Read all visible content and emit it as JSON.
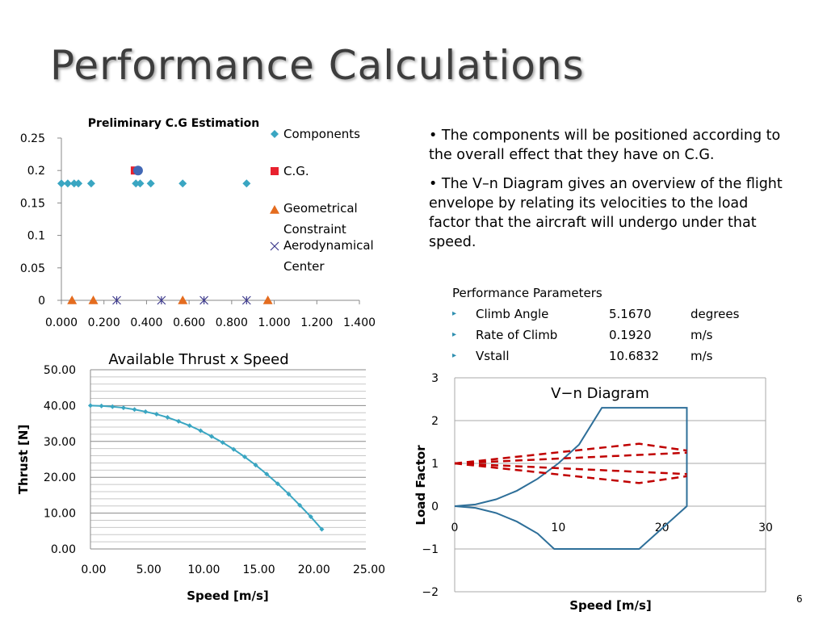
{
  "slide": {
    "title": "Performance Calculations",
    "page_number": "6"
  },
  "bullets": [
    "• The components will be positioned according to the overall effect that they have on C.G.",
    "• The V–n Diagram gives an overview of the flight envelope by relating its velocities to the load factor that the aircraft will undergo under that speed."
  ],
  "performance": {
    "heading": "Performance Parameters",
    "rows": [
      {
        "name": "Climb Angle",
        "value": "5.1670",
        "unit": "degrees"
      },
      {
        "name": "Rate of Climb",
        "value": "0.1920",
        "unit": "m/s"
      },
      {
        "name": "Vstall",
        "value": "10.6832",
        "unit": "m/s"
      }
    ]
  },
  "colors": {
    "title": "#3d3d3d",
    "components": "#3aa6c2",
    "cg": "#e8212e",
    "cg_marker": "#4268b5",
    "geometrical": "#e46c1f",
    "aero": "#3d3a8c",
    "thrust_line": "#3aa6c2",
    "envelope": "#2e6f99",
    "gust": "#c00000",
    "bullet_arrow": "#2e8fb0"
  },
  "chart_data": [
    {
      "type": "scatter",
      "title": "Preliminary C.G Estimation",
      "xlim": [
        0,
        1.4
      ],
      "ylim": [
        0,
        0.25
      ],
      "x_ticks": [
        "0.000",
        "0.200",
        "0.400",
        "0.600",
        "0.800",
        "1.000",
        "1.200",
        "1.400"
      ],
      "y_ticks": [
        "0",
        "0.05",
        "0.1",
        "0.15",
        "0.2",
        "0.25"
      ],
      "grid": false,
      "legend_position": "right",
      "series": [
        {
          "name": "Components",
          "marker": "diamond",
          "x": [
            0.0,
            0.03,
            0.06,
            0.08,
            0.14,
            0.35,
            0.37,
            0.42,
            0.57,
            0.87
          ],
          "y": [
            0.18,
            0.18,
            0.18,
            0.18,
            0.18,
            0.18,
            0.18,
            0.18,
            0.18,
            0.18
          ]
        },
        {
          "name": "C.G.",
          "marker": "square",
          "x": [
            0.345
          ],
          "y": [
            0.2
          ]
        },
        {
          "name": "Geometrical Constraint",
          "marker": "triangle",
          "x": [
            0.05,
            0.15,
            0.57,
            0.97
          ],
          "y": [
            0,
            0,
            0,
            0
          ]
        },
        {
          "name": "Aerodynamical Center",
          "marker": "star",
          "x": [
            0.26,
            0.47,
            0.67,
            0.87
          ],
          "y": [
            0,
            0,
            0,
            0
          ]
        }
      ]
    },
    {
      "type": "line",
      "title": "Available Thrust x Speed",
      "xlabel": "Speed [m/s]",
      "ylabel": "Thrust [N]",
      "xlim": [
        0,
        25
      ],
      "ylim": [
        0,
        50
      ],
      "x_ticks": [
        "0.00",
        "5.00",
        "10.00",
        "15.00",
        "20.00",
        "25.00"
      ],
      "y_ticks": [
        "0.00",
        "10.00",
        "20.00",
        "30.00",
        "40.00",
        "50.00"
      ],
      "grid": true,
      "series": [
        {
          "name": "",
          "x": [
            0,
            1,
            2,
            3,
            4,
            5,
            6,
            7,
            8,
            9,
            10,
            11,
            12,
            13,
            14,
            15,
            16,
            17,
            18,
            19,
            20,
            21
          ],
          "y": [
            40.0,
            39.9,
            39.7,
            39.4,
            38.9,
            38.3,
            37.6,
            36.7,
            35.6,
            34.4,
            33.0,
            31.4,
            29.7,
            27.8,
            25.7,
            23.4,
            20.9,
            18.2,
            15.3,
            12.2,
            9.0,
            5.5
          ]
        }
      ]
    },
    {
      "type": "line",
      "title": "V−n Diagram",
      "xlabel": "Speed [m/s]",
      "ylabel": "Load Factor",
      "xlim": [
        0,
        30
      ],
      "ylim": [
        -2,
        3
      ],
      "x_ticks": [
        "0",
        "10",
        "20",
        "30"
      ],
      "y_ticks": [
        "−2",
        "−1",
        "0",
        "1",
        "2",
        "3"
      ],
      "grid": true,
      "series": [
        {
          "name": "",
          "style": "solid",
          "x": [
            0,
            2,
            4,
            6,
            8,
            10,
            12,
            14.2,
            22.4,
            22.4,
            17.8,
            9.6,
            8,
            6,
            4,
            2,
            0
          ],
          "y": [
            0,
            0.04,
            0.16,
            0.36,
            0.64,
            1.0,
            1.44,
            2.3,
            2.3,
            0,
            -1.0,
            -1.0,
            -0.64,
            -0.36,
            -0.16,
            -0.04,
            0
          ]
        },
        {
          "name": "",
          "style": "dashed",
          "x": [
            0,
            17.8,
            22.4
          ],
          "y": [
            1,
            1.46,
            1.3
          ]
        },
        {
          "name": "",
          "style": "dashed",
          "x": [
            0,
            22.4
          ],
          "y": [
            1,
            1.25
          ]
        },
        {
          "name": "",
          "style": "dashed",
          "x": [
            0,
            22.4
          ],
          "y": [
            1,
            0.75
          ]
        },
        {
          "name": "",
          "style": "dashed",
          "x": [
            0,
            17.8,
            22.4
          ],
          "y": [
            1,
            0.54,
            0.7
          ]
        }
      ]
    }
  ]
}
